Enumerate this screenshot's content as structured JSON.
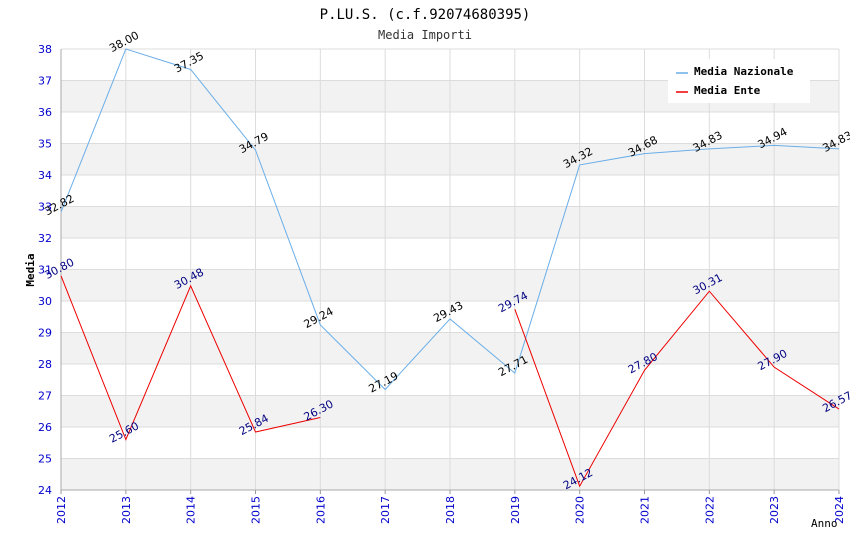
{
  "chart_data": {
    "type": "line",
    "title": "P.LU.S. (c.f.92074680395)",
    "subtitle": "Media Importi",
    "xlabel": "Anno",
    "ylabel": "Media",
    "ylim": [
      24,
      38
    ],
    "yticks": [
      24,
      25,
      26,
      27,
      28,
      29,
      30,
      31,
      32,
      33,
      34,
      35,
      36,
      37,
      38
    ],
    "categories": [
      "2012",
      "2013",
      "2014",
      "2015",
      "2016",
      "2017",
      "2018",
      "2019",
      "2020",
      "2021",
      "2022",
      "2023",
      "2024"
    ],
    "grid": true,
    "legend_position": "top-right",
    "series": [
      {
        "name": "Media Nazionale",
        "color": "#6aaee8",
        "label_color": "#000000",
        "values": [
          32.82,
          38.0,
          37.35,
          34.79,
          29.24,
          27.19,
          29.43,
          27.71,
          34.32,
          34.68,
          34.83,
          34.94,
          34.83
        ],
        "labels": [
          "32.82",
          "38.00",
          "37.35",
          "34.79",
          "29.24",
          "27.19",
          "29.43",
          "27.71",
          "34.32",
          "34.68",
          "34.83",
          "34.94",
          "34.83"
        ]
      },
      {
        "name": "Media Ente",
        "color": "#ee0000",
        "label_color": "#000080",
        "values": [
          30.8,
          25.6,
          30.48,
          25.84,
          26.3,
          null,
          null,
          29.74,
          24.12,
          27.8,
          30.31,
          27.9,
          26.57
        ],
        "labels": [
          "30.80",
          "25.60",
          "30.48",
          "25.84",
          "26.30",
          null,
          null,
          "29.74",
          "24.12",
          "27.80",
          "30.31",
          "27.90",
          "26.57"
        ]
      }
    ]
  }
}
